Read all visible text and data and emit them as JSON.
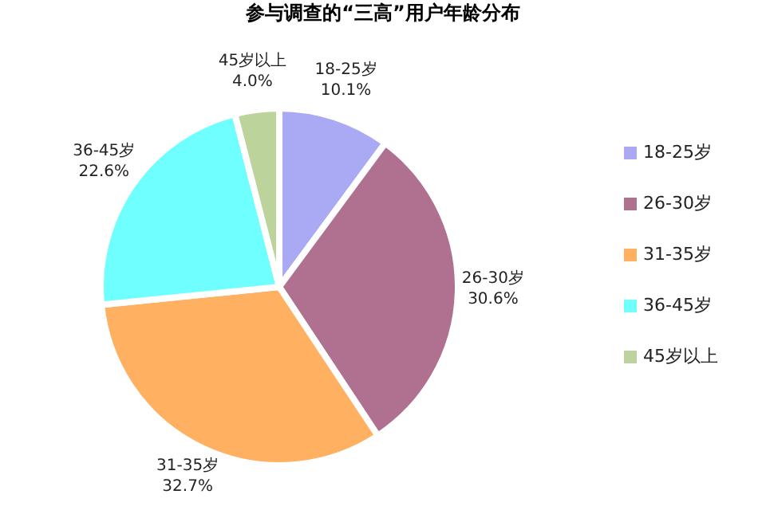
{
  "chart_data": {
    "type": "pie",
    "title": "参与调查的“三高”用户年龄分布",
    "categories": [
      "18-25岁",
      "26-30岁",
      "31-35岁",
      "36-45岁",
      "45岁以上"
    ],
    "values": [
      10.1,
      30.6,
      32.7,
      22.6,
      4.0
    ],
    "value_labels": [
      "10.1%",
      "30.6%",
      "32.7%",
      "22.6%",
      "4.0%"
    ],
    "colors": [
      "#aaaaf4",
      "#b07090",
      "#ffb060",
      "#70ffff",
      "#bcd49c"
    ],
    "legend": "right"
  }
}
